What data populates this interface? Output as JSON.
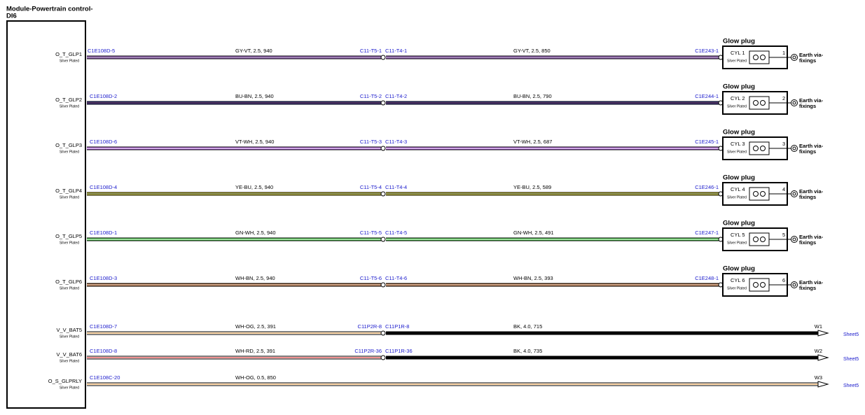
{
  "module": {
    "title_lines": [
      "Module-Powertrain control-",
      "DI6"
    ]
  },
  "circuits": [
    {
      "pin": "O_T_GLP1",
      "plating": "Silver Plated",
      "from": "C1E108D-5",
      "wire1": {
        "label": "GY-VT, 2.5, 940",
        "colors": [
          "#9a5cc4",
          "#a8a8a8"
        ]
      },
      "splice": {
        "left": "C11-T5-1",
        "right": "C11-T4-1"
      },
      "wire2": {
        "label": "GY-VT, 2.5, 850",
        "colors": [
          "#9a5cc4",
          "#a8a8a8"
        ]
      },
      "to": "C1E243-1",
      "load": {
        "title": "Glow plug",
        "cyl": "CYL 1",
        "plating": "Silver Plated",
        "pin": "1",
        "earth_lines": [
          "Earth via-",
          "fixings"
        ]
      }
    },
    {
      "pin": "O_T_GLP2",
      "plating": "Silver Plated",
      "from": "C1E108D-2",
      "wire1": {
        "label": "BU-BN, 2.5, 940",
        "colors": [
          "#2a2fa8",
          "#7a3b10"
        ]
      },
      "splice": {
        "left": "C11-T5-2",
        "right": "C11-T4-2"
      },
      "wire2": {
        "label": "BU-BN, 2.5, 790",
        "colors": [
          "#2a2fa8",
          "#7a3b10"
        ]
      },
      "to": "C1E244-1",
      "load": {
        "title": "Glow plug",
        "cyl": "CYL 2",
        "plating": "Silver Plated",
        "pin": "2",
        "earth_lines": [
          "Earth via-",
          "fixings"
        ]
      }
    },
    {
      "pin": "O_T_GLP3",
      "plating": "Silver Plated",
      "from": "C1E108D-6",
      "wire1": {
        "label": "VT-WH, 2.5, 940",
        "colors": [
          "#a855d6",
          "#ffffff"
        ]
      },
      "splice": {
        "left": "C11-T5-3",
        "right": "C11-T4-3"
      },
      "wire2": {
        "label": "VT-WH, 2.5, 687",
        "colors": [
          "#a855d6",
          "#ffffff"
        ]
      },
      "to": "C1E245-1",
      "load": {
        "title": "Glow plug",
        "cyl": "CYL 3",
        "plating": "Silver Plated",
        "pin": "3",
        "earth_lines": [
          "Earth via-",
          "fixings"
        ]
      }
    },
    {
      "pin": "O_T_GLP4",
      "plating": "Silver Plated",
      "from": "C1E108D-4",
      "wire1": {
        "label": "YE-BU, 2.5, 940",
        "colors": [
          "#f2e000",
          "#2040c0"
        ]
      },
      "splice": {
        "left": "C11-T5-4",
        "right": "C11-T4-4"
      },
      "wire2": {
        "label": "YE-BU, 2.5, 589",
        "colors": [
          "#f2e000",
          "#2040c0"
        ]
      },
      "to": "C1E246-1",
      "load": {
        "title": "Glow plug",
        "cyl": "CYL 4",
        "plating": "Silver Plated",
        "pin": "4",
        "earth_lines": [
          "Earth via-",
          "fixings"
        ]
      }
    },
    {
      "pin": "O_T_GLP5",
      "plating": "Silver Plated",
      "from": "C1E108D-1",
      "wire1": {
        "label": "GN-WH, 2.5, 940",
        "colors": [
          "#3cc43c",
          "#ffffff"
        ]
      },
      "splice": {
        "left": "C11-T5-5",
        "right": "C11-T4-5"
      },
      "wire2": {
        "label": "GN-WH, 2.5, 491",
        "colors": [
          "#3cc43c",
          "#ffffff"
        ]
      },
      "to": "C1E247-1",
      "load": {
        "title": "Glow plug",
        "cyl": "CYL 5",
        "plating": "Silver Plated",
        "pin": "5",
        "earth_lines": [
          "Earth via-",
          "fixings"
        ]
      }
    },
    {
      "pin": "O_T_GLP6",
      "plating": "Silver Plated",
      "from": "C1E108D-3",
      "wire1": {
        "label": "WH-BN, 2.5, 940",
        "colors": [
          "#a0521a",
          "#ffffff"
        ]
      },
      "splice": {
        "left": "C11-T5-6",
        "right": "C11-T4-6"
      },
      "wire2": {
        "label": "WH-BN, 2.5, 393",
        "colors": [
          "#a0521a",
          "#ffffff"
        ]
      },
      "to": "C1E248-1",
      "load": {
        "title": "Glow plug",
        "cyl": "CYL 6",
        "plating": "Silver Plated",
        "pin": "6",
        "earth_lines": [
          "Earth via-",
          "fixings"
        ]
      }
    },
    {
      "pin": "V_V_BAT5",
      "plating": "Silver Plated",
      "from": "C1E108D-7",
      "wire1": {
        "label": "WH-OG, 2.5, 391",
        "colors": [
          "#ffffff",
          "#f0a040"
        ]
      },
      "splice": {
        "left": "C11P2R-8",
        "right": "C11P1R-8"
      },
      "wire2": {
        "label": "BK, 4.0, 715",
        "colors": [
          "#000000",
          "#000000"
        ]
      },
      "end": {
        "ref": "W1",
        "sheet": "Sheet5"
      }
    },
    {
      "pin": "V_V_BAT6",
      "plating": "Silver Plated",
      "from": "C1E108D-8",
      "wire1": {
        "label": "WH-RD, 2.5, 391",
        "colors": [
          "#ffffff",
          "#e02020"
        ]
      },
      "splice": {
        "left": "C11P2R-36",
        "right": "C11P1R-36"
      },
      "wire2": {
        "label": "BK, 4.0, 735",
        "colors": [
          "#000000",
          "#000000"
        ]
      },
      "end": {
        "ref": "W2",
        "sheet": "Sheet5"
      }
    },
    {
      "pin": "O_S_GLPRLY",
      "plating": "Silver Plated",
      "from": "C1E108C-20",
      "wire1": {
        "label": "WH-OG, 0.5, 850",
        "colors": [
          "#ffffff",
          "#f0a040"
        ]
      },
      "end": {
        "ref": "W3",
        "sheet": "Sheet5"
      }
    }
  ]
}
